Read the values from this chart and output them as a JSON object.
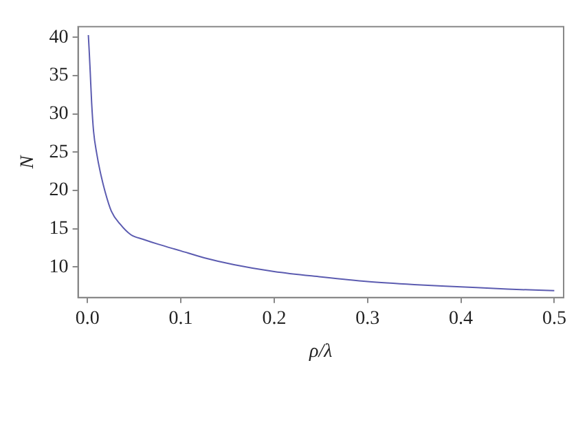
{
  "chart_data": {
    "type": "line",
    "xlabel": "ρ/λ",
    "ylabel": "N",
    "xlim": [
      -0.01,
      0.51
    ],
    "ylim": [
      6,
      41.4
    ],
    "xticks": [
      {
        "value": 0,
        "label": "0.0"
      },
      0.1,
      0.2,
      0.3,
      0.4,
      0.5
    ],
    "yticks": [
      10,
      15,
      20,
      25,
      30,
      35,
      40
    ],
    "grid": false,
    "legend": false,
    "marker": "none",
    "line_style": "solid",
    "series": [
      {
        "color": "#5b5bb0",
        "x": [
          0.001,
          0.002,
          0.003,
          0.0045,
          0.0066,
          0.01,
          0.0136,
          0.019,
          0.0256,
          0.035,
          0.0466,
          0.06,
          0.075,
          0.1,
          0.125,
          0.157,
          0.2,
          0.25,
          0.3,
          0.35,
          0.4,
          0.45,
          0.5
        ],
        "values": [
          40.3,
          38,
          35.5,
          31.5,
          27.7,
          24.8,
          22.5,
          19.8,
          17.3,
          15.6,
          14.2,
          13.6,
          13.0,
          12.1,
          11.2,
          10.3,
          9.4,
          8.7,
          8.1,
          7.7,
          7.4,
          7.1,
          6.9
        ]
      }
    ]
  }
}
